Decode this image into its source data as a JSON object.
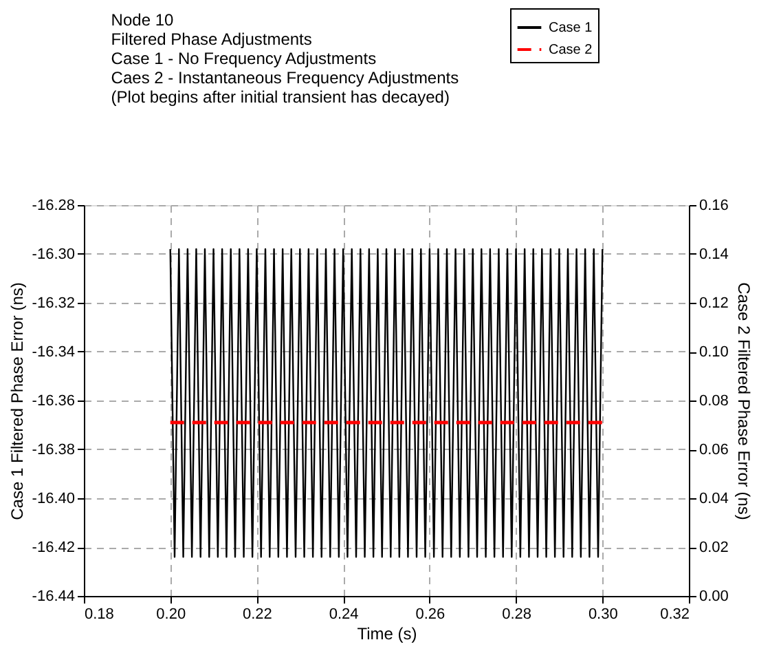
{
  "chart_data": {
    "type": "line",
    "title": "Node 10\nFiltered Phase Adjustments\nCase 1 - No Frequency Adjustments\nCaes 2 - Instantaneous Frequency Adjustments\n(Plot begins after initial transient has decayed)",
    "xlabel": "Time (s)",
    "ylabel": "Case 1 Filtered Phase Error (ns)",
    "y2label": "Case 2 Filtered Phase Error (ns)",
    "xlim": [
      0.18,
      0.32
    ],
    "xticks": [
      {
        "value": 0.18,
        "label": "0.18"
      },
      {
        "value": 0.2,
        "label": "0.20"
      },
      {
        "value": 0.22,
        "label": "0.22"
      },
      {
        "value": 0.24,
        "label": "0.24"
      },
      {
        "value": 0.26,
        "label": "0.26"
      },
      {
        "value": 0.28,
        "label": "0.28"
      },
      {
        "value": 0.3,
        "label": "0.30"
      },
      {
        "value": 0.32,
        "label": "0.32"
      }
    ],
    "ylim": [
      -16.44,
      -16.28
    ],
    "yticks": [
      -16.44,
      {
        "value": -16.42,
        "label": "-16.42"
      },
      {
        "value": -16.4,
        "label": "-16.40"
      },
      -16.38,
      -16.36,
      -16.34,
      -16.32,
      {
        "value": -16.3,
        "label": "-16.30"
      },
      -16.28
    ],
    "y2lim": [
      0,
      0.16
    ],
    "y2ticks": [
      {
        "value": 0,
        "label": "0.00"
      },
      0.02,
      0.04,
      0.06,
      0.08,
      {
        "value": 0.1,
        "label": "0.10"
      },
      0.12,
      0.14,
      0.16
    ],
    "grid": true,
    "legend": "top right",
    "series": [
      {
        "name": "Case 1",
        "color": "#000000",
        "line_style": "solid",
        "x": [
          0.2,
          0.201,
          0.202,
          0.203,
          0.204,
          0.205,
          0.206,
          0.207,
          0.208,
          0.209,
          0.21,
          0.211,
          0.212,
          0.213,
          0.214,
          0.215,
          0.216,
          0.217,
          0.218,
          0.219,
          0.22,
          0.221,
          0.222,
          0.223,
          0.224,
          0.225,
          0.226,
          0.227,
          0.228,
          0.229,
          0.23,
          0.231,
          0.232,
          0.233,
          0.234,
          0.235,
          0.236,
          0.237,
          0.238,
          0.239,
          0.24,
          0.241,
          0.242,
          0.243,
          0.244,
          0.245,
          0.246,
          0.247,
          0.248,
          0.249,
          0.25,
          0.251,
          0.252,
          0.253,
          0.254,
          0.255,
          0.256,
          0.257,
          0.258,
          0.259,
          0.26,
          0.261,
          0.262,
          0.263,
          0.264,
          0.265,
          0.266,
          0.267,
          0.268,
          0.269,
          0.27,
          0.271,
          0.272,
          0.273,
          0.274,
          0.275,
          0.276,
          0.277,
          0.278,
          0.279,
          0.28,
          0.281,
          0.282,
          0.283,
          0.284,
          0.285,
          0.286,
          0.287,
          0.288,
          0.289,
          0.29,
          0.291,
          0.292,
          0.293,
          0.294,
          0.295,
          0.296,
          0.297,
          0.298,
          0.299,
          0.3
        ],
        "values": [
          -16.298,
          -16.424,
          -16.298,
          -16.424,
          -16.298,
          -16.424,
          -16.298,
          -16.424,
          -16.298,
          -16.424,
          -16.298,
          -16.424,
          -16.298,
          -16.424,
          -16.298,
          -16.424,
          -16.298,
          -16.424,
          -16.298,
          -16.424,
          -16.298,
          -16.424,
          -16.298,
          -16.424,
          -16.298,
          -16.424,
          -16.298,
          -16.424,
          -16.298,
          -16.424,
          -16.298,
          -16.424,
          -16.298,
          -16.424,
          -16.298,
          -16.424,
          -16.298,
          -16.424,
          -16.298,
          -16.424,
          -16.298,
          -16.424,
          -16.298,
          -16.424,
          -16.298,
          -16.424,
          -16.298,
          -16.424,
          -16.298,
          -16.424,
          -16.298,
          -16.424,
          -16.298,
          -16.424,
          -16.298,
          -16.424,
          -16.298,
          -16.424,
          -16.298,
          -16.424,
          -16.298,
          -16.424,
          -16.298,
          -16.424,
          -16.298,
          -16.424,
          -16.298,
          -16.424,
          -16.298,
          -16.424,
          -16.298,
          -16.424,
          -16.298,
          -16.424,
          -16.298,
          -16.424,
          -16.298,
          -16.424,
          -16.298,
          -16.424,
          -16.298,
          -16.424,
          -16.298,
          -16.424,
          -16.298,
          -16.424,
          -16.298,
          -16.424,
          -16.298,
          -16.424,
          -16.298,
          -16.424,
          -16.298,
          -16.424,
          -16.298,
          -16.424,
          -16.298,
          -16.424,
          -16.298,
          -16.424,
          -16.298
        ]
      },
      {
        "name": "Case 2",
        "color": "#ff0000",
        "line_style": "dashed",
        "axis": "y2",
        "x": [
          0.2,
          0.3
        ],
        "values": [
          0.071,
          0.071
        ]
      }
    ]
  }
}
